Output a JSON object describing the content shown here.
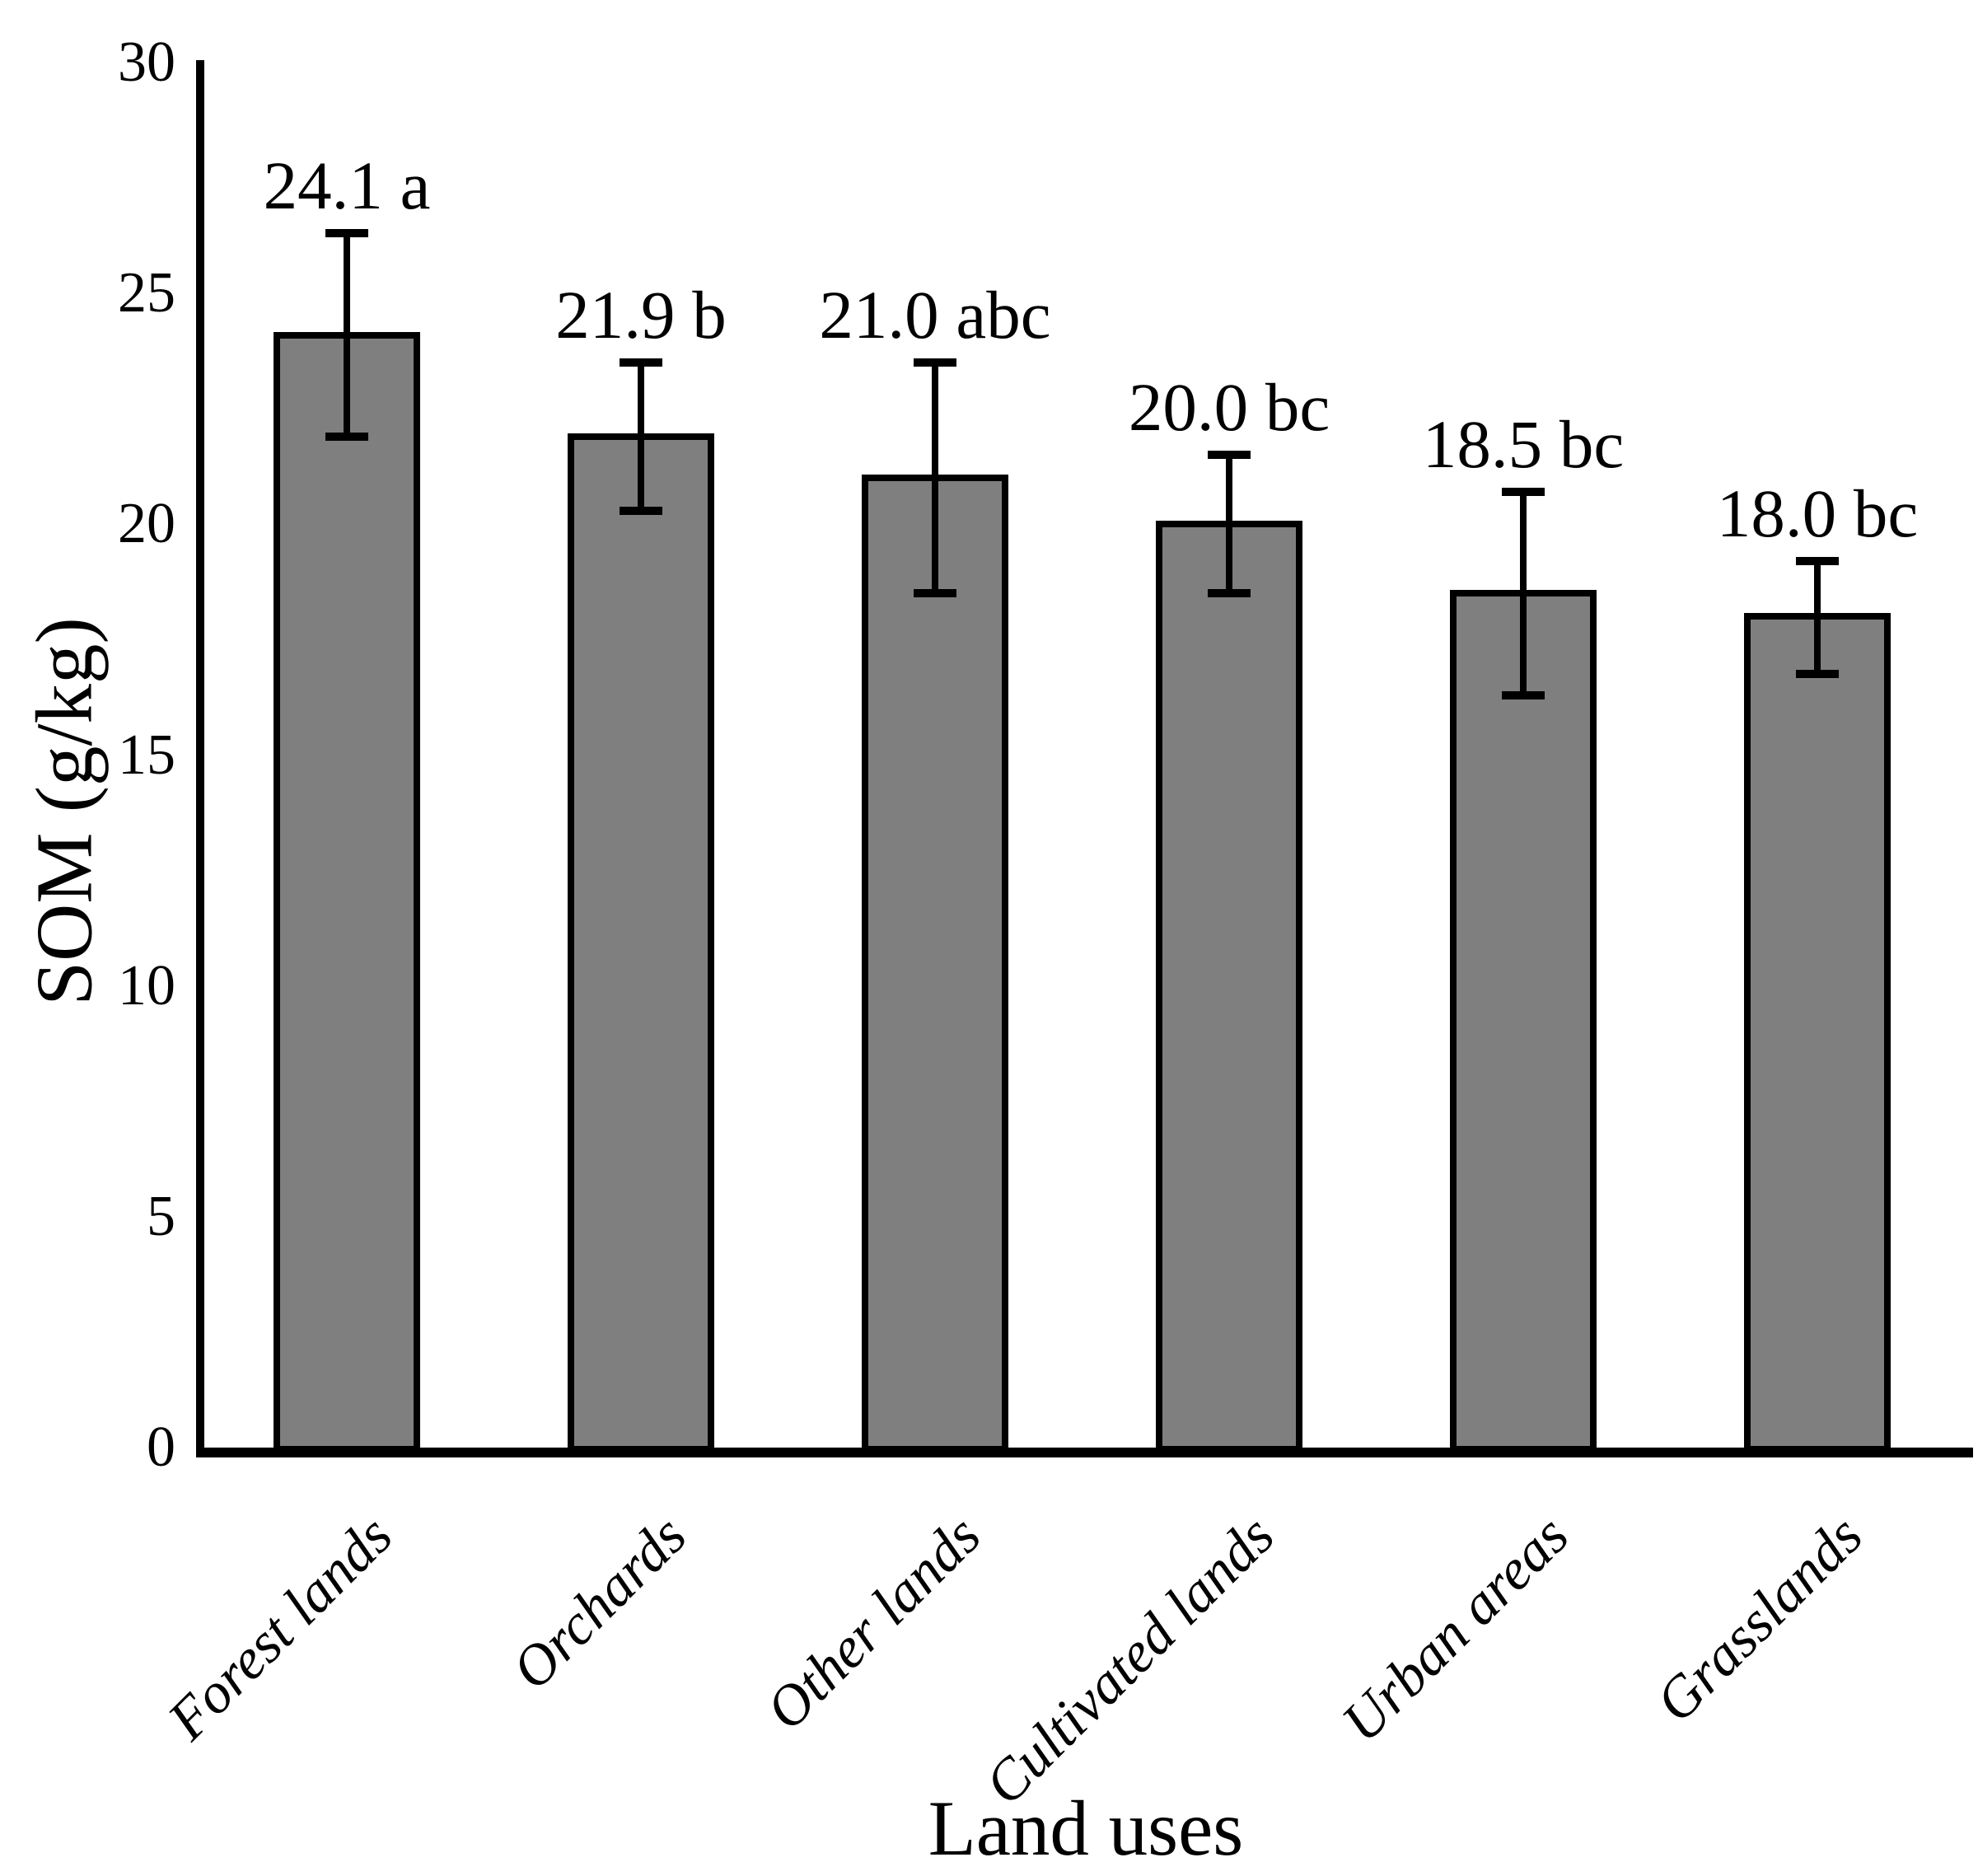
{
  "chart_data": {
    "type": "bar",
    "title": "",
    "xlabel": "Land uses",
    "ylabel": "SOM (g/kg)",
    "categories": [
      "Forest lands",
      "Orchards",
      "Other lands",
      "Cultivated lands",
      "Urban areas",
      "Grasslands"
    ],
    "values": [
      24.1,
      21.9,
      21.0,
      20.0,
      18.5,
      18.0
    ],
    "errors_up": [
      2.2,
      1.6,
      2.5,
      1.5,
      2.2,
      1.2
    ],
    "errors_down": [
      2.2,
      1.6,
      2.5,
      1.5,
      2.2,
      1.25
    ],
    "bar_labels": [
      "24.1 a",
      "21.9 b",
      "21.0 abc",
      "20.0 bc",
      "18.5 bc",
      "18.0 bc"
    ],
    "significance_letters": [
      "a",
      "b",
      "abc",
      "bc",
      "bc",
      "bc"
    ],
    "yticks": [
      30,
      25,
      20,
      15,
      10,
      5,
      0
    ],
    "ylim": [
      0,
      30
    ],
    "grid": false,
    "legend": null,
    "bar_color": "#7f7f7f",
    "bar_border_color": "#000000",
    "axis_color": "#000000",
    "text_color": "#000000",
    "background_color": "#ffffff"
  }
}
